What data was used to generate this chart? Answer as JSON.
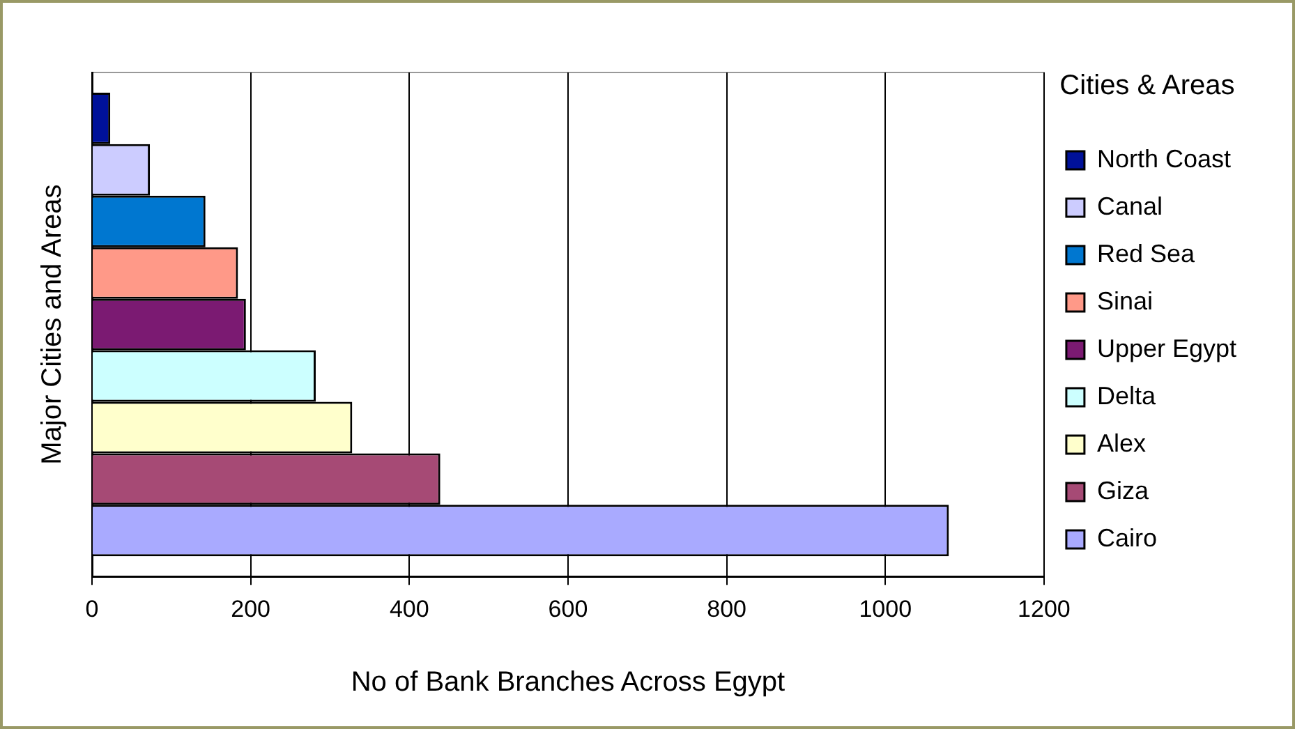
{
  "chart_data": {
    "type": "bar",
    "orientation": "horizontal",
    "xlabel": "No of Bank Branches Across Egypt",
    "ylabel": "Major Cities and Areas",
    "legend_title": "Cities & Areas",
    "categories": [
      null
    ],
    "xlim": [
      0,
      1200
    ],
    "xticks": [
      0,
      200,
      400,
      600,
      800,
      1000,
      1200
    ],
    "grid": "x",
    "legend": "right",
    "series": [
      {
        "name": "North Coast",
        "color": "#001199",
        "values": [
          23
        ]
      },
      {
        "name": "Canal",
        "color": "#ccccff",
        "values": [
          73
        ]
      },
      {
        "name": "Red Sea",
        "color": "#0077d0",
        "values": [
          143
        ]
      },
      {
        "name": "Sinai",
        "color": "#ff9988",
        "values": [
          184
        ]
      },
      {
        "name": "Upper Egypt",
        "color": "#7b1a72",
        "values": [
          194
        ]
      },
      {
        "name": "Delta",
        "color": "#ccffff",
        "values": [
          282
        ]
      },
      {
        "name": "Alex",
        "color": "#ffffcc",
        "values": [
          328
        ]
      },
      {
        "name": "Giza",
        "color": "#a64a75",
        "values": [
          439
        ]
      },
      {
        "name": "Cairo",
        "color": "#a9aaff",
        "values": [
          1080
        ]
      }
    ]
  }
}
